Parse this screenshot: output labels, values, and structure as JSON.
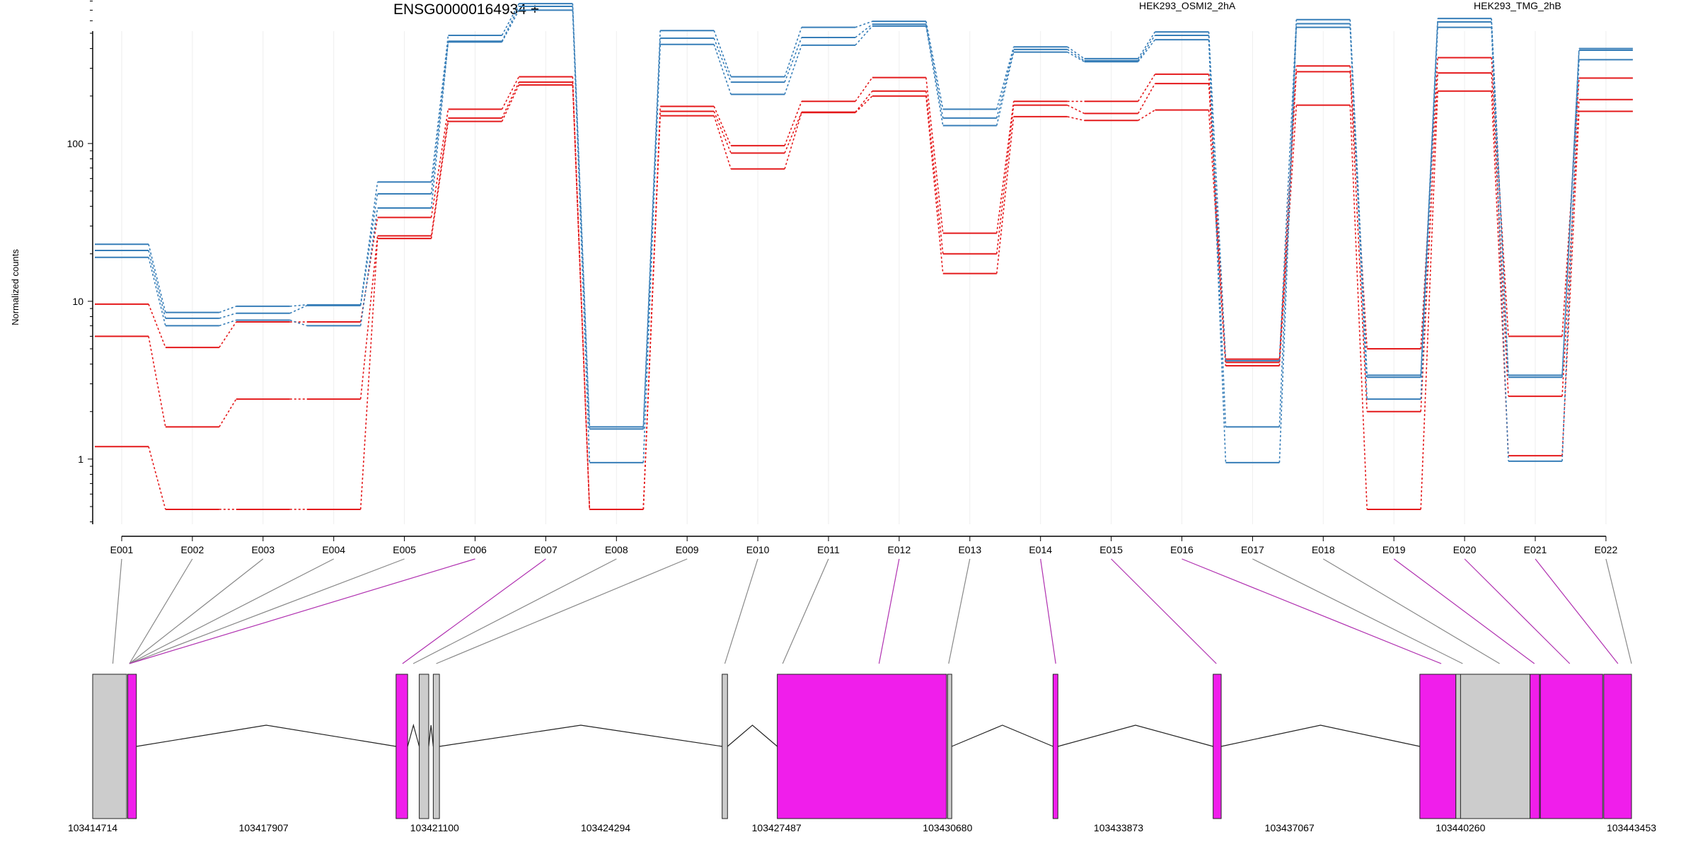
{
  "title": "ENSG00000164934 +",
  "colors": {
    "HEK293_OSMI2_2hA": "#e41a1c",
    "HEK293_TMG_2hB": "#377eb8",
    "exon_used": "#f01eeb",
    "exon_other": "#cccccc",
    "grid": "#eeeeee"
  },
  "chart_data": {
    "type": "line",
    "ylabel": "Normalized counts",
    "yscale": "log",
    "yticks": [
      1,
      10,
      100
    ],
    "ylim": [
      0.4,
      1000
    ],
    "categories": [
      "E001",
      "E002",
      "E003",
      "E004",
      "E005",
      "E006",
      "E007",
      "E008",
      "E009",
      "E010",
      "E011",
      "E012",
      "E013",
      "E014",
      "E015",
      "E016",
      "E017",
      "E018",
      "E019",
      "E020",
      "E021",
      "E022"
    ],
    "legend": [
      {
        "name": "HEK293_OSMI2_2hA",
        "color": "#e41a1c"
      },
      {
        "name": "HEK293_TMG_2hB",
        "color": "#377eb8"
      }
    ],
    "series": [
      {
        "group": "HEK293_OSMI2_2hA",
        "values": [
          9.6,
          5.1,
          7.4,
          7.4,
          34,
          165,
          265,
          0.48,
          172,
          97,
          185,
          262,
          27,
          185,
          185,
          275,
          4.3,
          310,
          5.0,
          350,
          6.0,
          260
        ]
      },
      {
        "group": "HEK293_OSMI2_2hA",
        "values": [
          6.0,
          1.6,
          2.4,
          2.4,
          26,
          145,
          245,
          0.48,
          160,
          87,
          158,
          215,
          20,
          175,
          155,
          240,
          4.1,
          285,
          2.0,
          280,
          2.5,
          190
        ]
      },
      {
        "group": "HEK293_OSMI2_2hA",
        "values": [
          1.2,
          0.48,
          0.48,
          0.48,
          25,
          138,
          235,
          0.48,
          150,
          69,
          157,
          200,
          15,
          148,
          140,
          163,
          3.9,
          175,
          0.48,
          215,
          1.05,
          160
        ]
      },
      {
        "group": "HEK293_TMG_2hB",
        "values": [
          23,
          8.5,
          9.3,
          9.5,
          57,
          485,
          770,
          1.6,
          520,
          265,
          545,
          595,
          165,
          410,
          345,
          510,
          4.2,
          610,
          3.4,
          620,
          3.4,
          400
        ]
      },
      {
        "group": "HEK293_TMG_2hB",
        "values": [
          21,
          7.8,
          8.4,
          9.4,
          48,
          445,
          740,
          1.55,
          465,
          245,
          470,
          570,
          145,
          395,
          335,
          485,
          1.6,
          575,
          3.3,
          590,
          3.3,
          390
        ]
      },
      {
        "group": "HEK293_TMG_2hB",
        "values": [
          19,
          7.0,
          7.6,
          7.0,
          39,
          440,
          700,
          0.95,
          425,
          205,
          420,
          555,
          130,
          380,
          330,
          455,
          0.95,
          545,
          2.4,
          545,
          0.97,
          340
        ]
      }
    ],
    "coordinate_ticks": [
      "103414714",
      "103417907",
      "103421100",
      "103424294",
      "103427487",
      "103430680",
      "103433873",
      "103437067",
      "103440260",
      "103443453"
    ]
  },
  "gene_model": {
    "exon_start": [
      103414714,
      103415369,
      103420380,
      103420813,
      103421075,
      103426470,
      103427500,
      103430680,
      103432650,
      103435640,
      103439500,
      103440173,
      103440260,
      103441559,
      103441750,
      103442935
    ],
    "exon_end": [
      103415349,
      103415530,
      103420596,
      103420990,
      103421190,
      103426570,
      103430660,
      103430758,
      103432740,
      103435790,
      103440173,
      103440329,
      103441559,
      103441735,
      103442915,
      103443453
    ],
    "exon_used": [
      false,
      true,
      true,
      false,
      false,
      false,
      true,
      false,
      true,
      true,
      true,
      false,
      false,
      true,
      true,
      true
    ],
    "connectors": [
      {
        "label": "E001",
        "gene_pos": 103415090,
        "used": false
      },
      {
        "label": "E002",
        "gene_pos": 103415400,
        "used": false
      },
      {
        "label": "E003",
        "gene_pos": 103415400,
        "used": false
      },
      {
        "label": "E004",
        "gene_pos": 103415400,
        "used": false
      },
      {
        "label": "E005",
        "gene_pos": 103415400,
        "used": false
      },
      {
        "label": "E006",
        "gene_pos": 103415400,
        "used": true
      },
      {
        "label": "E007",
        "gene_pos": 103420500,
        "used": true
      },
      {
        "label": "E008",
        "gene_pos": 103420700,
        "used": false
      },
      {
        "label": "E009",
        "gene_pos": 103421130,
        "used": false
      },
      {
        "label": "E010",
        "gene_pos": 103426520,
        "used": false
      },
      {
        "label": "E011",
        "gene_pos": 103427600,
        "used": false
      },
      {
        "label": "E012",
        "gene_pos": 103429400,
        "used": true
      },
      {
        "label": "E013",
        "gene_pos": 103430700,
        "used": false
      },
      {
        "label": "E014",
        "gene_pos": 103432700,
        "used": true
      },
      {
        "label": "E015",
        "gene_pos": 103435700,
        "used": true
      },
      {
        "label": "E016",
        "gene_pos": 103439900,
        "used": true
      },
      {
        "label": "E017",
        "gene_pos": 103440300,
        "used": false
      },
      {
        "label": "E018",
        "gene_pos": 103440990,
        "used": false
      },
      {
        "label": "E019",
        "gene_pos": 103441640,
        "used": true
      },
      {
        "label": "E020",
        "gene_pos": 103442300,
        "used": true
      },
      {
        "label": "E021",
        "gene_pos": 103443200,
        "used": true
      },
      {
        "label": "E022",
        "gene_pos": 103443453,
        "used": false
      }
    ]
  }
}
